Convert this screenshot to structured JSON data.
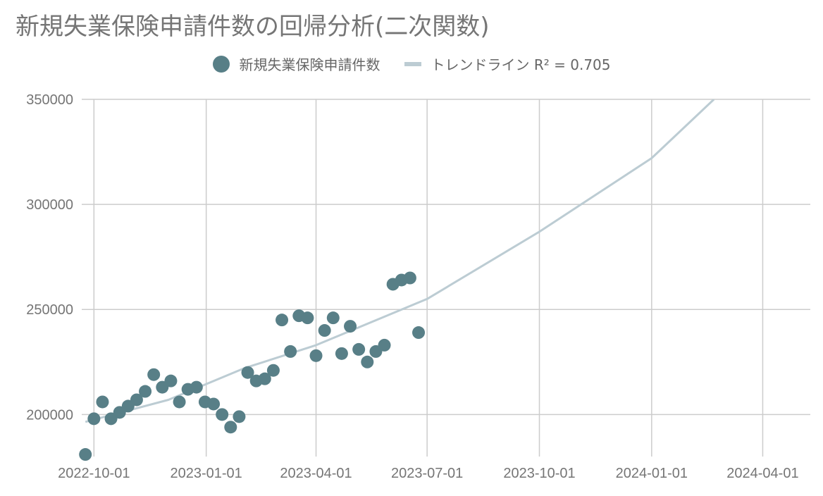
{
  "chart_data": {
    "type": "scatter",
    "title": "新規失業保険申請件数の回帰分析(二次関数)",
    "series": [
      {
        "name": "新規失業保険申請件数",
        "color": "#587f87",
        "points": [
          [
            "2022-09-24",
            181000
          ],
          [
            "2022-10-01",
            198000
          ],
          [
            "2022-10-08",
            206000
          ],
          [
            "2022-10-15",
            198000
          ],
          [
            "2022-10-22",
            201000
          ],
          [
            "2022-10-29",
            204000
          ],
          [
            "2022-11-05",
            207000
          ],
          [
            "2022-11-12",
            211000
          ],
          [
            "2022-11-19",
            219000
          ],
          [
            "2022-11-26",
            213000
          ],
          [
            "2022-12-03",
            216000
          ],
          [
            "2022-12-10",
            206000
          ],
          [
            "2022-12-17",
            212000
          ],
          [
            "2022-12-24",
            213000
          ],
          [
            "2022-12-31",
            206000
          ],
          [
            "2023-01-07",
            205000
          ],
          [
            "2023-01-14",
            200000
          ],
          [
            "2023-01-21",
            194000
          ],
          [
            "2023-01-28",
            199000
          ],
          [
            "2023-02-04",
            220000
          ],
          [
            "2023-02-11",
            216000
          ],
          [
            "2023-02-18",
            217000
          ],
          [
            "2023-02-25",
            221000
          ],
          [
            "2023-03-04",
            245000
          ],
          [
            "2023-03-11",
            230000
          ],
          [
            "2023-03-18",
            247000
          ],
          [
            "2023-03-25",
            246000
          ],
          [
            "2023-04-01",
            228000
          ],
          [
            "2023-04-08",
            240000
          ],
          [
            "2023-04-15",
            246000
          ],
          [
            "2023-04-22",
            229000
          ],
          [
            "2023-04-29",
            242000
          ],
          [
            "2023-05-06",
            231000
          ],
          [
            "2023-05-13",
            225000
          ],
          [
            "2023-05-20",
            230000
          ],
          [
            "2023-05-27",
            233000
          ],
          [
            "2023-06-03",
            262000
          ],
          [
            "2023-06-10",
            264000
          ],
          [
            "2023-06-17",
            265000
          ],
          [
            "2023-06-24",
            239000
          ]
        ]
      },
      {
        "name": "トレンドライン R² = 0.705",
        "color": "#bcccd3",
        "type": "trendline",
        "curve": [
          [
            "2022-09-24",
            196500
          ],
          [
            "2022-12-01",
            207000
          ],
          [
            "2023-02-01",
            222000
          ],
          [
            "2023-04-01",
            233000
          ],
          [
            "2023-07-01",
            255000
          ],
          [
            "2023-10-01",
            287000
          ],
          [
            "2024-01-01",
            322000
          ],
          [
            "2024-02-21",
            350000
          ]
        ]
      }
    ],
    "x_ticks": [
      "2022-10-01",
      "2023-01-01",
      "2023-04-01",
      "2023-07-01",
      "2023-10-01",
      "2024-01-01",
      "2024-04-01"
    ],
    "y_ticks": [
      200000,
      250000,
      300000,
      350000
    ],
    "xlim": [
      "2022-09-21",
      "2024-05-10"
    ],
    "ylim": [
      180000,
      350000
    ],
    "grid": true,
    "legend_position": "top"
  }
}
